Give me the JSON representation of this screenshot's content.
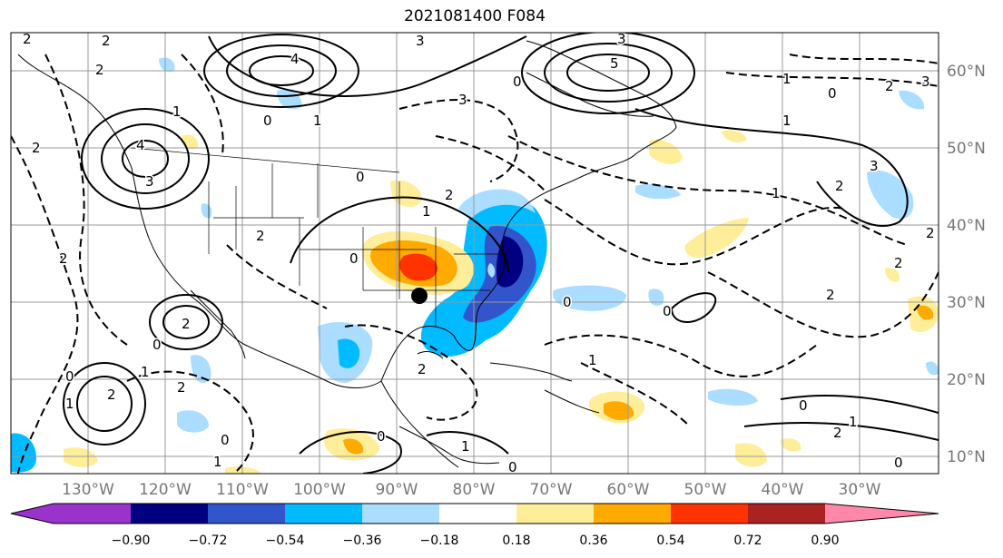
{
  "title": "2021081400 F084",
  "lon_ticks": [
    "130°W",
    "120°W",
    "110°W",
    "100°W",
    "90°W",
    "80°W",
    "70°W",
    "60°W",
    "50°W",
    "40°W",
    "30°W"
  ],
  "lat_ticks": [
    "60°N",
    "50°N",
    "40°N",
    "30°N",
    "20°N",
    "10°N"
  ],
  "colorbar": {
    "colors": [
      "#9933cc",
      "#000080",
      "#3355cc",
      "#00bbff",
      "#aaddff",
      "#ffffff",
      "#ffee99",
      "#ffaa00",
      "#ff3300",
      "#aa2222",
      "#ff88aa"
    ],
    "labels": [
      "−0.90",
      "−0.72",
      "−0.54",
      "−0.36",
      "−0.18",
      "0.18",
      "0.36",
      "0.54",
      "0.72",
      "0.90"
    ],
    "extend": "both"
  },
  "contour_labels": [
    "2",
    "2",
    "2",
    "1",
    "4",
    "3",
    "0",
    "1",
    "3",
    "5",
    "0",
    "1",
    "2",
    "3",
    "2",
    "4",
    "3",
    "0",
    "1",
    "2",
    "3",
    "0",
    "2",
    "2",
    "0",
    "1",
    "2",
    "3",
    "2",
    "2",
    "2",
    "0",
    "1",
    "0",
    "2",
    "1",
    "0",
    "2",
    "1",
    "2",
    "0",
    "0",
    "1",
    "2",
    "1",
    "0",
    "2",
    "1",
    "0",
    "0",
    "1",
    "0"
  ],
  "marker": "black dot"
}
